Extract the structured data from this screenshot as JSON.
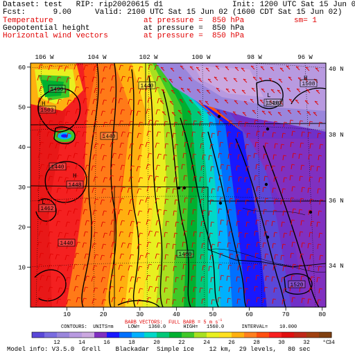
{
  "header": {
    "dataset_line": "Dataset: test   RIP: rip20020615 d1",
    "init_line": "Init: 1200 UTC Sat 15 Jun 02",
    "fcst_line": "Fcst:      9.00",
    "valid_line": "Valid: 2100 UTC Sat 15 Jun 02 (1600 CDT Sat 15 Jun 02)",
    "field1_name": "Temperature",
    "field1_level": "at pressure =  850 hPa",
    "field1_extra": "sm= 1",
    "field2_name": "Geopotential height",
    "field2_level": "at pressure =  850 hPa",
    "field3_name": "Horizontal wind vectors",
    "field3_level": "at pressure =  850 hPa"
  },
  "map": {
    "lon_labels": [
      "106 W",
      "104 W",
      "102 W",
      "100 W",
      "98 W",
      "96 W"
    ],
    "lat_labels": [
      "40 N",
      "38 N",
      "36 N",
      "34 N"
    ],
    "x_ticks": [
      "10",
      "20",
      "30",
      "40",
      "50",
      "60",
      "70",
      "80"
    ],
    "y_ticks": [
      "10",
      "20",
      "30",
      "40",
      "50",
      "60"
    ],
    "height_labels": [
      "1490",
      "1503",
      "1440",
      "1440",
      "1448",
      "1462",
      "1440",
      "1440",
      "1480",
      "1490",
      "1520",
      "1510",
      "1508"
    ],
    "high_low_labels": [
      "H",
      "H",
      "L",
      "H",
      "L"
    ]
  },
  "footer": {
    "barb_text": "BARB VECTORS:  FULL BARB = 5 m s",
    "barb_exp": "-1",
    "contours_text": "CONTOURS:  UNITS=m     LOW=   1360.0      HIGH=   1560.0      INTERVAL=    10.000",
    "colorbar_labels": [
      "12",
      "14",
      "16",
      "18",
      "20",
      "22",
      "24",
      "26",
      "28",
      "30",
      "32",
      "34"
    ],
    "colorbar_unit": "°C",
    "colorbar_colors": [
      "#5a48d8",
      "#7a6ce0",
      "#9a86dc",
      "#b89ae0",
      "#cba8e0",
      "#8030c0",
      "#1818ff",
      "#0070ff",
      "#00b0ff",
      "#00d8c8",
      "#00c878",
      "#00b030",
      "#40c828",
      "#a8e020",
      "#e8f020",
      "#ffe020",
      "#ffb010",
      "#ff8020",
      "#ff5010",
      "#f82020",
      "#e01010",
      "#c02818",
      "#a04010",
      "#804010"
    ],
    "model_info": "Model info: V3.5.0  Grell    Blackadar  Simple ice    12 km,  29 levels,   80 sec"
  }
}
